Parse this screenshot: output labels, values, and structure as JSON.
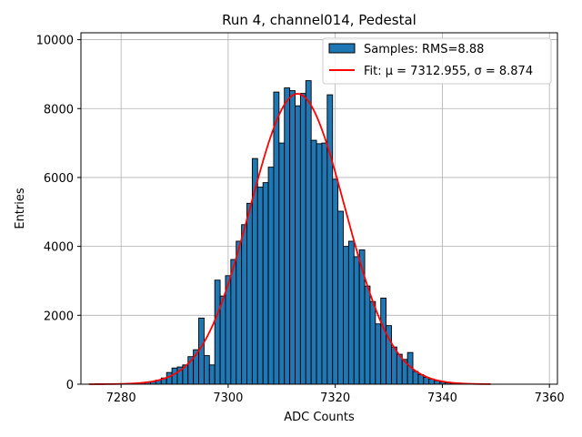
{
  "chart_data": {
    "type": "bar",
    "title": "Run 4, channel014, Pedestal",
    "xlabel": "ADC Counts",
    "ylabel": "Entries",
    "xlim": [
      7272.5,
      7361.5
    ],
    "ylim": [
      0,
      10200
    ],
    "xticks": [
      7280,
      7300,
      7320,
      7340,
      7360
    ],
    "yticks": [
      0,
      2000,
      4000,
      6000,
      8000,
      10000
    ],
    "grid": true,
    "legend_position": "top-right",
    "bin_width": 1,
    "series": [
      {
        "name": "Samples: RMS=8.88",
        "kind": "histogram",
        "color": "#1f77b4",
        "edge_color": "#000000",
        "bins": [
          [
            7281,
            10
          ],
          [
            7282,
            15
          ],
          [
            7283,
            25
          ],
          [
            7284,
            40
          ],
          [
            7285,
            60
          ],
          [
            7286,
            80
          ],
          [
            7287,
            120
          ],
          [
            7288,
            180
          ],
          [
            7289,
            340
          ],
          [
            7290,
            470
          ],
          [
            7291,
            500
          ],
          [
            7292,
            560
          ],
          [
            7293,
            800
          ],
          [
            7294,
            1000
          ],
          [
            7295,
            1920
          ],
          [
            7296,
            830
          ],
          [
            7297,
            560
          ],
          [
            7298,
            3020
          ],
          [
            7299,
            2560
          ],
          [
            7300,
            3150
          ],
          [
            7301,
            3620
          ],
          [
            7302,
            4150
          ],
          [
            7303,
            4630
          ],
          [
            7304,
            5250
          ],
          [
            7305,
            6550
          ],
          [
            7306,
            5720
          ],
          [
            7307,
            5850
          ],
          [
            7308,
            6300
          ],
          [
            7309,
            8480
          ],
          [
            7310,
            7000
          ],
          [
            7311,
            8600
          ],
          [
            7312,
            8520
          ],
          [
            7313,
            8080
          ],
          [
            7314,
            8440
          ],
          [
            7315,
            8810
          ],
          [
            7316,
            7080
          ],
          [
            7317,
            6980
          ],
          [
            7318,
            7000
          ],
          [
            7319,
            8400
          ],
          [
            7320,
            5950
          ],
          [
            7321,
            5020
          ],
          [
            7322,
            4000
          ],
          [
            7323,
            4150
          ],
          [
            7324,
            3700
          ],
          [
            7325,
            3900
          ],
          [
            7326,
            2850
          ],
          [
            7327,
            2400
          ],
          [
            7328,
            1750
          ],
          [
            7329,
            2500
          ],
          [
            7330,
            1700
          ],
          [
            7331,
            1080
          ],
          [
            7332,
            870
          ],
          [
            7333,
            720
          ],
          [
            7334,
            920
          ],
          [
            7335,
            370
          ],
          [
            7336,
            280
          ],
          [
            7337,
            200
          ],
          [
            7338,
            150
          ],
          [
            7339,
            100
          ],
          [
            7340,
            60
          ],
          [
            7341,
            40
          ],
          [
            7342,
            25
          ],
          [
            7343,
            15
          ],
          [
            7344,
            8
          ]
        ]
      },
      {
        "name": "Fit: μ = 7312.955, σ = 8.874",
        "kind": "gaussian-fit",
        "color": "#ff0000",
        "mu": 7312.955,
        "sigma": 8.874,
        "amplitude": 8430,
        "x_range": [
          7274,
          7349
        ]
      }
    ]
  }
}
